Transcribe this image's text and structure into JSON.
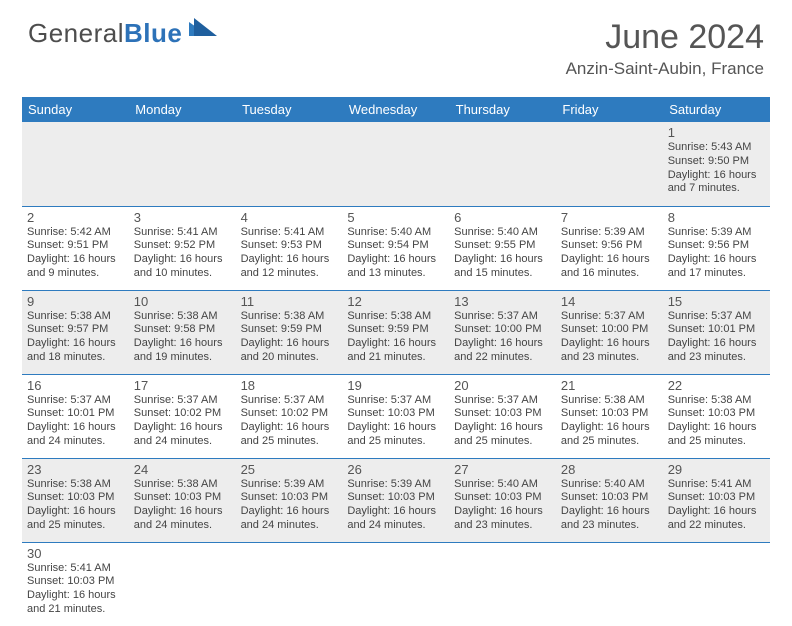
{
  "brand": {
    "word1": "General",
    "word2": "Blue"
  },
  "header": {
    "title": "June 2024",
    "location": "Anzin-Saint-Aubin, France"
  },
  "colors": {
    "headerBar": "#2e7bbf",
    "text": "#444",
    "shade": "#ededed"
  },
  "weekdays": [
    "Sunday",
    "Monday",
    "Tuesday",
    "Wednesday",
    "Thursday",
    "Friday",
    "Saturday"
  ],
  "weeks": [
    [
      null,
      null,
      null,
      null,
      null,
      null,
      {
        "n": "1",
        "rise": "Sunrise: 5:43 AM",
        "set": "Sunset: 9:50 PM",
        "d1": "Daylight: 16 hours",
        "d2": "and 7 minutes."
      }
    ],
    [
      {
        "n": "2",
        "rise": "Sunrise: 5:42 AM",
        "set": "Sunset: 9:51 PM",
        "d1": "Daylight: 16 hours",
        "d2": "and 9 minutes."
      },
      {
        "n": "3",
        "rise": "Sunrise: 5:41 AM",
        "set": "Sunset: 9:52 PM",
        "d1": "Daylight: 16 hours",
        "d2": "and 10 minutes."
      },
      {
        "n": "4",
        "rise": "Sunrise: 5:41 AM",
        "set": "Sunset: 9:53 PM",
        "d1": "Daylight: 16 hours",
        "d2": "and 12 minutes."
      },
      {
        "n": "5",
        "rise": "Sunrise: 5:40 AM",
        "set": "Sunset: 9:54 PM",
        "d1": "Daylight: 16 hours",
        "d2": "and 13 minutes."
      },
      {
        "n": "6",
        "rise": "Sunrise: 5:40 AM",
        "set": "Sunset: 9:55 PM",
        "d1": "Daylight: 16 hours",
        "d2": "and 15 minutes."
      },
      {
        "n": "7",
        "rise": "Sunrise: 5:39 AM",
        "set": "Sunset: 9:56 PM",
        "d1": "Daylight: 16 hours",
        "d2": "and 16 minutes."
      },
      {
        "n": "8",
        "rise": "Sunrise: 5:39 AM",
        "set": "Sunset: 9:56 PM",
        "d1": "Daylight: 16 hours",
        "d2": "and 17 minutes."
      }
    ],
    [
      {
        "n": "9",
        "rise": "Sunrise: 5:38 AM",
        "set": "Sunset: 9:57 PM",
        "d1": "Daylight: 16 hours",
        "d2": "and 18 minutes."
      },
      {
        "n": "10",
        "rise": "Sunrise: 5:38 AM",
        "set": "Sunset: 9:58 PM",
        "d1": "Daylight: 16 hours",
        "d2": "and 19 minutes."
      },
      {
        "n": "11",
        "rise": "Sunrise: 5:38 AM",
        "set": "Sunset: 9:59 PM",
        "d1": "Daylight: 16 hours",
        "d2": "and 20 minutes."
      },
      {
        "n": "12",
        "rise": "Sunrise: 5:38 AM",
        "set": "Sunset: 9:59 PM",
        "d1": "Daylight: 16 hours",
        "d2": "and 21 minutes."
      },
      {
        "n": "13",
        "rise": "Sunrise: 5:37 AM",
        "set": "Sunset: 10:00 PM",
        "d1": "Daylight: 16 hours",
        "d2": "and 22 minutes."
      },
      {
        "n": "14",
        "rise": "Sunrise: 5:37 AM",
        "set": "Sunset: 10:00 PM",
        "d1": "Daylight: 16 hours",
        "d2": "and 23 minutes."
      },
      {
        "n": "15",
        "rise": "Sunrise: 5:37 AM",
        "set": "Sunset: 10:01 PM",
        "d1": "Daylight: 16 hours",
        "d2": "and 23 minutes."
      }
    ],
    [
      {
        "n": "16",
        "rise": "Sunrise: 5:37 AM",
        "set": "Sunset: 10:01 PM",
        "d1": "Daylight: 16 hours",
        "d2": "and 24 minutes."
      },
      {
        "n": "17",
        "rise": "Sunrise: 5:37 AM",
        "set": "Sunset: 10:02 PM",
        "d1": "Daylight: 16 hours",
        "d2": "and 24 minutes."
      },
      {
        "n": "18",
        "rise": "Sunrise: 5:37 AM",
        "set": "Sunset: 10:02 PM",
        "d1": "Daylight: 16 hours",
        "d2": "and 25 minutes."
      },
      {
        "n": "19",
        "rise": "Sunrise: 5:37 AM",
        "set": "Sunset: 10:03 PM",
        "d1": "Daylight: 16 hours",
        "d2": "and 25 minutes."
      },
      {
        "n": "20",
        "rise": "Sunrise: 5:37 AM",
        "set": "Sunset: 10:03 PM",
        "d1": "Daylight: 16 hours",
        "d2": "and 25 minutes."
      },
      {
        "n": "21",
        "rise": "Sunrise: 5:38 AM",
        "set": "Sunset: 10:03 PM",
        "d1": "Daylight: 16 hours",
        "d2": "and 25 minutes."
      },
      {
        "n": "22",
        "rise": "Sunrise: 5:38 AM",
        "set": "Sunset: 10:03 PM",
        "d1": "Daylight: 16 hours",
        "d2": "and 25 minutes."
      }
    ],
    [
      {
        "n": "23",
        "rise": "Sunrise: 5:38 AM",
        "set": "Sunset: 10:03 PM",
        "d1": "Daylight: 16 hours",
        "d2": "and 25 minutes."
      },
      {
        "n": "24",
        "rise": "Sunrise: 5:38 AM",
        "set": "Sunset: 10:03 PM",
        "d1": "Daylight: 16 hours",
        "d2": "and 24 minutes."
      },
      {
        "n": "25",
        "rise": "Sunrise: 5:39 AM",
        "set": "Sunset: 10:03 PM",
        "d1": "Daylight: 16 hours",
        "d2": "and 24 minutes."
      },
      {
        "n": "26",
        "rise": "Sunrise: 5:39 AM",
        "set": "Sunset: 10:03 PM",
        "d1": "Daylight: 16 hours",
        "d2": "and 24 minutes."
      },
      {
        "n": "27",
        "rise": "Sunrise: 5:40 AM",
        "set": "Sunset: 10:03 PM",
        "d1": "Daylight: 16 hours",
        "d2": "and 23 minutes."
      },
      {
        "n": "28",
        "rise": "Sunrise: 5:40 AM",
        "set": "Sunset: 10:03 PM",
        "d1": "Daylight: 16 hours",
        "d2": "and 23 minutes."
      },
      {
        "n": "29",
        "rise": "Sunrise: 5:41 AM",
        "set": "Sunset: 10:03 PM",
        "d1": "Daylight: 16 hours",
        "d2": "and 22 minutes."
      }
    ],
    [
      {
        "n": "30",
        "rise": "Sunrise: 5:41 AM",
        "set": "Sunset: 10:03 PM",
        "d1": "Daylight: 16 hours",
        "d2": "and 21 minutes."
      },
      null,
      null,
      null,
      null,
      null,
      null
    ]
  ]
}
